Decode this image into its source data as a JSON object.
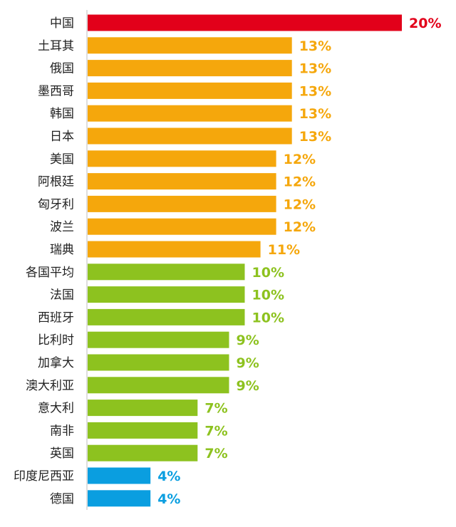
{
  "chart_data": {
    "type": "bar",
    "orientation": "horizontal",
    "title": "",
    "xlabel": "",
    "ylabel": "",
    "xlim": [
      0,
      20
    ],
    "grid": false,
    "legend": "none",
    "value_format": "{v}%",
    "categories": [
      "中国",
      "土耳其",
      "俄国",
      "墨西哥",
      "韩国",
      "日本",
      "美国",
      "阿根廷",
      "匈牙利",
      "波兰",
      "瑞典",
      "各国平均",
      "法国",
      "西班牙",
      "比利时",
      "加拿大",
      "澳大利亚",
      "意大利",
      "南非",
      "英国",
      "印度尼西亚",
      "德国"
    ],
    "values": [
      20,
      13,
      13,
      13,
      13,
      13,
      12,
      12,
      12,
      12,
      11,
      10,
      10,
      10,
      9,
      9,
      9,
      7,
      7,
      7,
      4,
      4
    ],
    "value_labels": [
      "20%",
      "13%",
      "13%",
      "13%",
      "13%",
      "13%",
      "12%",
      "12%",
      "12%",
      "12%",
      "11%",
      "10%",
      "10%",
      "10%",
      "9%",
      "9%",
      "9%",
      "7%",
      "7%",
      "7%",
      "4%",
      "4%"
    ],
    "colors": {
      "top": "#e2001a",
      "high": "#f5a70c",
      "mid": "#8dc21f",
      "low": "#0a9ee0"
    },
    "color_groups": [
      "top",
      "high",
      "high",
      "high",
      "high",
      "high",
      "high",
      "high",
      "high",
      "high",
      "high",
      "mid",
      "mid",
      "mid",
      "mid",
      "mid",
      "mid",
      "mid",
      "mid",
      "mid",
      "low",
      "low"
    ]
  }
}
